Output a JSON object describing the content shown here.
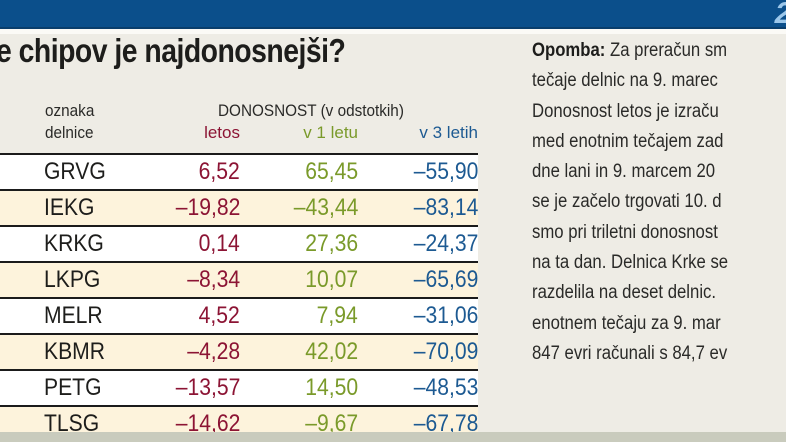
{
  "header": {
    "bar_color": "#0b4f8b",
    "page_glyph": "2"
  },
  "title": "e chipov je najdonosnejši?",
  "table": {
    "header": {
      "code_line1": "oznaka",
      "code_line2": "delnice",
      "group": "DONOSNOST (v odstotkih)",
      "col_letos": "letos",
      "col_1": "v 1 letu",
      "col_3": "v 3 letih"
    },
    "colors": {
      "letos": "#8c1434",
      "v1": "#7a9a2a",
      "v3": "#1d5a92",
      "row_alt": "#fdf3dc"
    },
    "rows": [
      {
        "code": "GRVG",
        "letos": "6,52",
        "v1": "65,45",
        "v3": "–55,90"
      },
      {
        "code": "IEKG",
        "letos": "–19,82",
        "v1": "–43,44",
        "v3": "–83,14"
      },
      {
        "code": "KRKG",
        "letos": "0,14",
        "v1": "27,36",
        "v3": "–24,37"
      },
      {
        "code": "LKPG",
        "letos": "–8,34",
        "v1": "10,07",
        "v3": "–65,69"
      },
      {
        "code": "MELR",
        "letos": "4,52",
        "v1": "7,94",
        "v3": "–31,06"
      },
      {
        "code": "KBMR",
        "letos": "–4,28",
        "v1": "42,02",
        "v3": "–70,09"
      },
      {
        "code": "PETG",
        "letos": "–13,57",
        "v1": "14,50",
        "v3": "–48,53"
      },
      {
        "code": "TLSG",
        "letos": "–14,62",
        "v1": "–9,67",
        "v3": "–67,78"
      }
    ]
  },
  "note": {
    "label": "Opomba:",
    "first_line_rest": " Za preračun sm",
    "lines": [
      "tečaje delnic na 9. marec",
      "Donosnost letos je izraču",
      "med enotnim tečajem zad",
      "dne lani in 9. marcem 20",
      "se je začelo trgovati 10. d",
      "smo pri triletni donosnost",
      "na ta dan. Delnica Krke se",
      "razdelila na deset delnic.",
      "enotnem tečaju za 9. mar",
      "847 evri računali s 84,7 ev"
    ]
  }
}
